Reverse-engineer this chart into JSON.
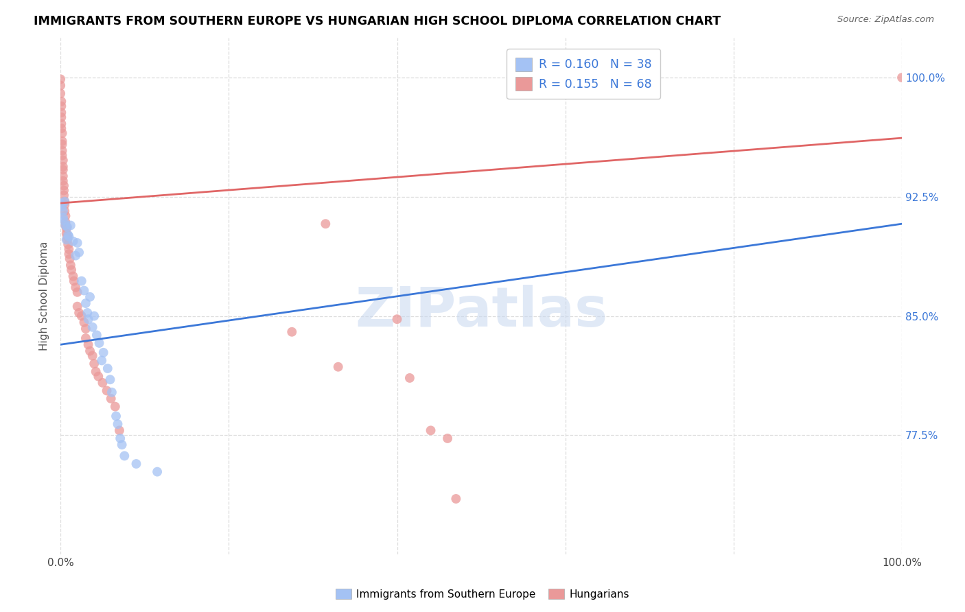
{
  "title": "IMMIGRANTS FROM SOUTHERN EUROPE VS HUNGARIAN HIGH SCHOOL DIPLOMA CORRELATION CHART",
  "source": "Source: ZipAtlas.com",
  "ylabel": "High School Diploma",
  "xlim": [
    0.0,
    1.0
  ],
  "ylim": [
    0.7,
    1.025
  ],
  "ytick_positions": [
    0.775,
    0.85,
    0.925,
    1.0
  ],
  "ytick_labels": [
    "77.5%",
    "85.0%",
    "92.5%",
    "100.0%"
  ],
  "blue_color": "#a4c2f4",
  "pink_color": "#ea9999",
  "trendline_blue": "#3c78d8",
  "trendline_pink": "#e06666",
  "watermark": "ZIPatlas",
  "blue_trend_x": [
    0.0,
    1.0
  ],
  "blue_trend_y": [
    0.832,
    0.908
  ],
  "pink_trend_x": [
    0.0,
    1.0
  ],
  "pink_trend_y": [
    0.921,
    0.962
  ],
  "blue_scatter": [
    [
      0.0,
      0.921
    ],
    [
      0.002,
      0.919
    ],
    [
      0.003,
      0.916
    ],
    [
      0.003,
      0.912
    ],
    [
      0.004,
      0.91
    ],
    [
      0.005,
      0.922
    ],
    [
      0.006,
      0.907
    ],
    [
      0.007,
      0.898
    ],
    [
      0.008,
      0.906
    ],
    [
      0.009,
      0.901
    ],
    [
      0.01,
      0.9
    ],
    [
      0.012,
      0.907
    ],
    [
      0.015,
      0.897
    ],
    [
      0.018,
      0.888
    ],
    [
      0.02,
      0.896
    ],
    [
      0.022,
      0.89
    ],
    [
      0.025,
      0.872
    ],
    [
      0.028,
      0.866
    ],
    [
      0.03,
      0.858
    ],
    [
      0.032,
      0.852
    ],
    [
      0.033,
      0.848
    ],
    [
      0.035,
      0.862
    ],
    [
      0.038,
      0.843
    ],
    [
      0.04,
      0.85
    ],
    [
      0.043,
      0.838
    ],
    [
      0.046,
      0.833
    ],
    [
      0.049,
      0.822
    ],
    [
      0.051,
      0.827
    ],
    [
      0.056,
      0.817
    ],
    [
      0.059,
      0.81
    ],
    [
      0.061,
      0.802
    ],
    [
      0.066,
      0.787
    ],
    [
      0.068,
      0.782
    ],
    [
      0.071,
      0.773
    ],
    [
      0.073,
      0.769
    ],
    [
      0.076,
      0.762
    ],
    [
      0.09,
      0.757
    ],
    [
      0.115,
      0.752
    ]
  ],
  "pink_scatter": [
    [
      0.0,
      0.999
    ],
    [
      0.0,
      0.995
    ],
    [
      0.0,
      0.99
    ],
    [
      0.001,
      0.985
    ],
    [
      0.001,
      0.982
    ],
    [
      0.001,
      0.978
    ],
    [
      0.001,
      0.975
    ],
    [
      0.001,
      0.971
    ],
    [
      0.001,
      0.968
    ],
    [
      0.002,
      0.965
    ],
    [
      0.002,
      0.96
    ],
    [
      0.002,
      0.958
    ],
    [
      0.002,
      0.954
    ],
    [
      0.002,
      0.951
    ],
    [
      0.003,
      0.948
    ],
    [
      0.003,
      0.944
    ],
    [
      0.003,
      0.942
    ],
    [
      0.003,
      0.938
    ],
    [
      0.003,
      0.935
    ],
    [
      0.004,
      0.932
    ],
    [
      0.004,
      0.929
    ],
    [
      0.004,
      0.926
    ],
    [
      0.005,
      0.922
    ],
    [
      0.005,
      0.92
    ],
    [
      0.005,
      0.916
    ],
    [
      0.006,
      0.913
    ],
    [
      0.006,
      0.909
    ],
    [
      0.006,
      0.907
    ],
    [
      0.007,
      0.905
    ],
    [
      0.007,
      0.902
    ],
    [
      0.008,
      0.9
    ],
    [
      0.008,
      0.898
    ],
    [
      0.009,
      0.895
    ],
    [
      0.01,
      0.892
    ],
    [
      0.01,
      0.889
    ],
    [
      0.011,
      0.886
    ],
    [
      0.012,
      0.882
    ],
    [
      0.013,
      0.879
    ],
    [
      0.015,
      0.875
    ],
    [
      0.016,
      0.872
    ],
    [
      0.018,
      0.868
    ],
    [
      0.02,
      0.865
    ],
    [
      0.02,
      0.856
    ],
    [
      0.022,
      0.852
    ],
    [
      0.025,
      0.85
    ],
    [
      0.028,
      0.846
    ],
    [
      0.03,
      0.842
    ],
    [
      0.03,
      0.836
    ],
    [
      0.033,
      0.832
    ],
    [
      0.035,
      0.828
    ],
    [
      0.038,
      0.825
    ],
    [
      0.04,
      0.82
    ],
    [
      0.042,
      0.815
    ],
    [
      0.045,
      0.812
    ],
    [
      0.05,
      0.808
    ],
    [
      0.055,
      0.803
    ],
    [
      0.06,
      0.798
    ],
    [
      0.065,
      0.793
    ],
    [
      0.07,
      0.778
    ],
    [
      0.275,
      0.84
    ],
    [
      0.315,
      0.908
    ],
    [
      0.33,
      0.818
    ],
    [
      0.4,
      0.848
    ],
    [
      0.415,
      0.811
    ],
    [
      0.44,
      0.778
    ],
    [
      0.46,
      0.773
    ],
    [
      0.47,
      0.735
    ],
    [
      1.0,
      1.0
    ]
  ]
}
